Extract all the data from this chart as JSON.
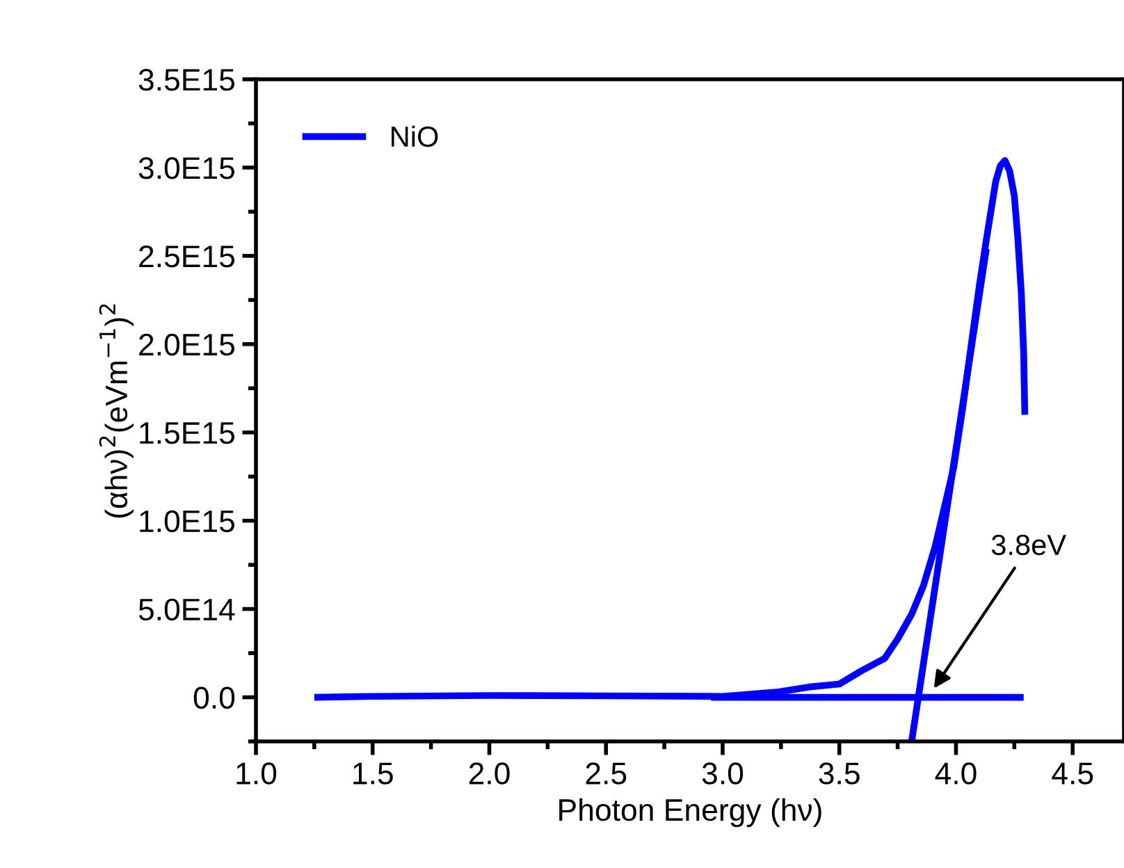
{
  "chart_data": {
    "type": "line",
    "xlabel": "Photon Energy (hν)",
    "ylabel": "(αhν)$^{2}$(eVm$^{−1}$)$^{2}$",
    "xlim": [
      1.0,
      4.72
    ],
    "xticks": [
      {
        "value": 1,
        "label": "1.0"
      },
      1.5,
      {
        "value": 2,
        "label": "2.0"
      },
      2.5,
      {
        "value": 3,
        "label": "3.0"
      },
      3.5,
      {
        "value": 4,
        "label": "4.0"
      },
      4.5
    ],
    "ylim": [
      -250000000000000.0,
      3500000000000000.0
    ],
    "yticks": [
      {
        "value": 0,
        "label": "0.0"
      },
      {
        "value": 500000000000000.0,
        "label": "5.0E14"
      },
      {
        "value": 1000000000000000.0,
        "label": "1.0E15"
      },
      {
        "value": 1500000000000000.0,
        "label": "1.5E15"
      },
      {
        "value": 2000000000000000.0,
        "label": "2.0E15"
      },
      {
        "value": 2500000000000000.0,
        "label": "2.5E15"
      },
      {
        "value": 3000000000000000.0,
        "label": "3.0E15"
      },
      {
        "value": 3500000000000000.0,
        "label": "3.5E15"
      }
    ],
    "grid": false,
    "legend": "top left",
    "marker": "none",
    "line_style": "solid",
    "series": [
      {
        "name": "NiO",
        "color": "#0000ff",
        "x": [
          1.25,
          1.5,
          2.0,
          2.5,
          3.0,
          3.24,
          3.38,
          3.5,
          3.595,
          3.694,
          3.75,
          3.81,
          3.86,
          3.91,
          3.99,
          4.03,
          4.07,
          4.1,
          4.13,
          4.17,
          4.19,
          4.21,
          4.23,
          4.25,
          4.265,
          4.28,
          4.29,
          4.295
        ],
        "values": [
          0,
          5000000000000.0,
          10000000000000.0,
          8000000000000.0,
          5000000000000.0,
          30000000000000.0,
          60000000000000.0,
          75000000000000.0,
          150000000000000.0,
          220000000000000.0,
          330000000000000.0,
          470000000000000.0,
          630000000000000.0,
          850000000000000.0,
          1300000000000000.0,
          1650000000000000.0,
          2040000000000000.0,
          2330000000000000.0,
          2590000000000000.0,
          2920000000000000.0,
          3010000000000000.0,
          3040000000000000.0,
          2980000000000000.0,
          2840000000000000.0,
          2600000000000000.0,
          2290000000000000.0,
          1950000000000000.0,
          1600000000000000.0
        ]
      },
      {
        "color": "#0000ff",
        "x": [
          2.95,
          4.29
        ],
        "values": [
          0,
          0
        ]
      },
      {
        "color": "#0000ff",
        "x": [
          3.81,
          4.13
        ],
        "values": [
          -250000000000000.0,
          2540000000000000.0
        ]
      }
    ],
    "annotations": [
      {
        "text": "3.8eV",
        "x": 3.905,
        "y": 50000000000000.0
      }
    ]
  }
}
